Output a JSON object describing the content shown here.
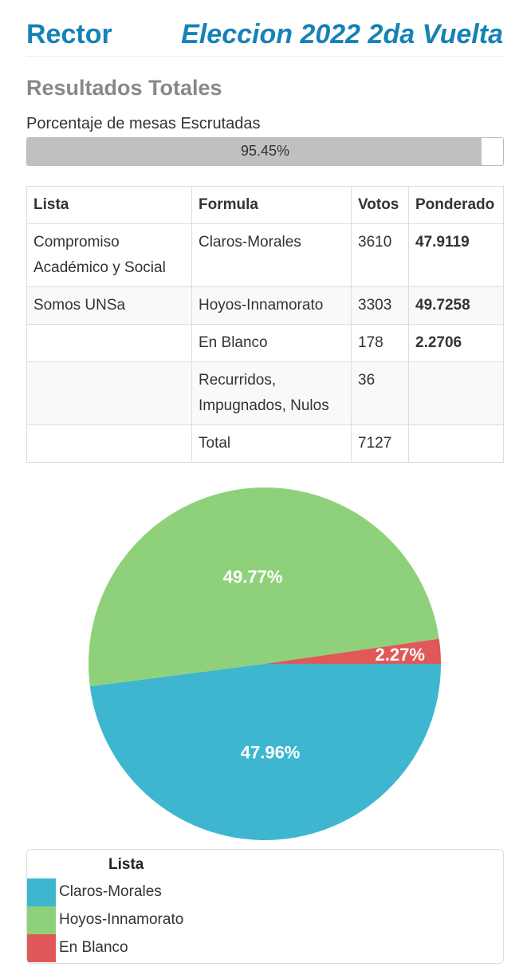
{
  "header": {
    "left": "Rector",
    "right": "Eleccion 2022 2da Vuelta"
  },
  "subtitle": "Resultados Totales",
  "progress": {
    "label": "Porcentaje de mesas Escrutadas",
    "value_text": "95.45%",
    "percent": 95.45
  },
  "table": {
    "headers": [
      "Lista",
      "Formula",
      "Votos",
      "Ponderado"
    ],
    "rows": [
      [
        "Compromiso Académico y Social",
        "Claros-Morales",
        "3610",
        "47.9119"
      ],
      [
        "Somos UNSa",
        "Hoyos-Innamorato",
        "3303",
        "49.7258"
      ],
      [
        "",
        "En Blanco",
        "178",
        "2.2706"
      ],
      [
        "",
        "Recurridos, Impugnados, Nulos",
        "36",
        ""
      ],
      [
        "",
        "Total",
        "7127",
        ""
      ]
    ]
  },
  "chart_data": {
    "type": "pie",
    "slices": [
      {
        "label": "Claros-Morales",
        "value": 47.96,
        "text": "47.96%",
        "color": "#3fb6d0"
      },
      {
        "label": "Hoyos-Innamorato",
        "value": 49.77,
        "text": "49.77%",
        "color": "#8fd17a"
      },
      {
        "label": "En Blanco",
        "value": 2.27,
        "text": "2.27%",
        "color": "#e05858"
      }
    ],
    "legend_title": "Lista",
    "legend_position": "bottom"
  }
}
